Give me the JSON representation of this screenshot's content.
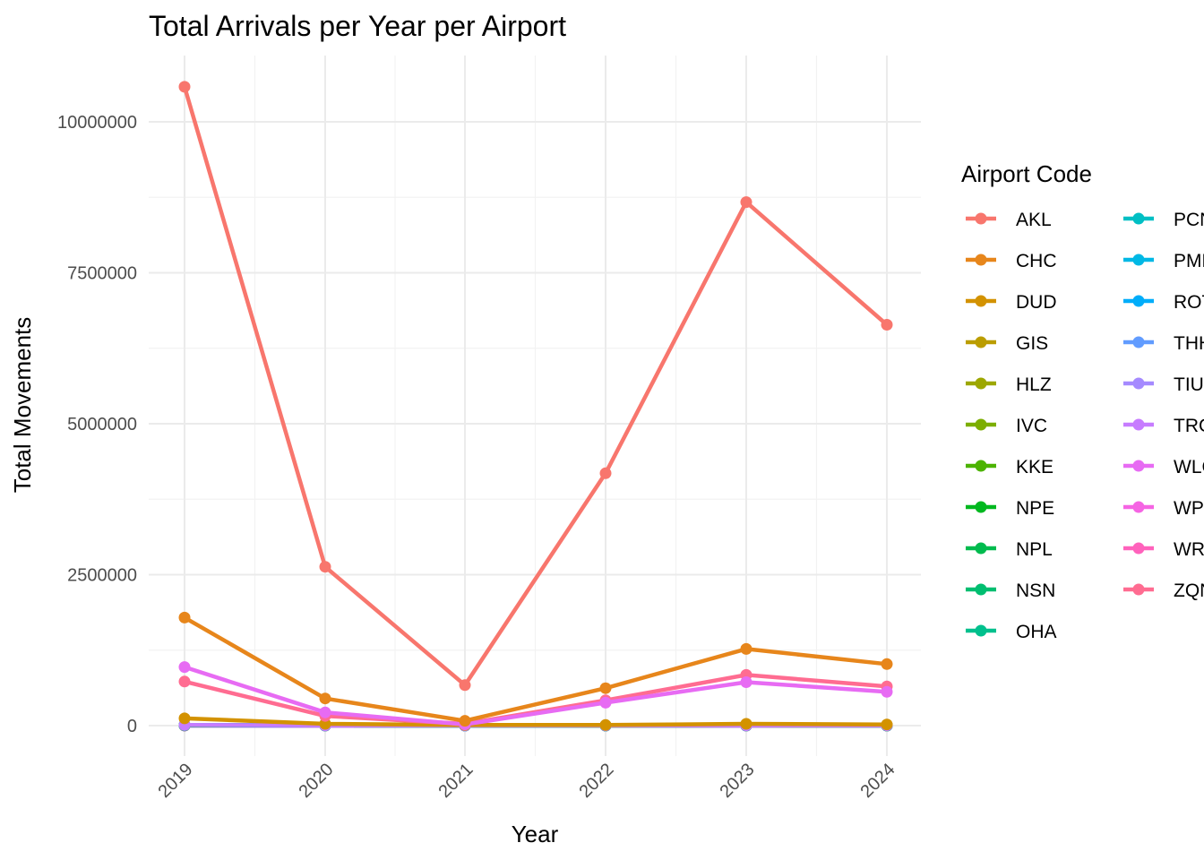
{
  "chart_data": {
    "type": "line",
    "title": "Total Arrivals per Year per Airport",
    "xlabel": "Year",
    "ylabel": "Total Movements",
    "x": [
      "2019",
      "2020",
      "2021",
      "2022",
      "2023",
      "2024"
    ],
    "ylim": [
      -500000,
      11000000
    ],
    "yticks": [
      0,
      2500000,
      5000000,
      7500000,
      10000000
    ],
    "ytick_labels": [
      "0",
      "2500000",
      "5000000",
      "7500000",
      "10000000"
    ],
    "grid": true,
    "legend_title": "Airport Code",
    "legend_position": "right",
    "series": [
      {
        "name": "AKL",
        "color": "#F8766D",
        "values": [
          10580000,
          2630000,
          670000,
          4180000,
          8670000,
          6640000
        ]
      },
      {
        "name": "CHC",
        "color": "#E7861B",
        "values": [
          1790000,
          450000,
          80000,
          620000,
          1270000,
          1020000
        ]
      },
      {
        "name": "DUD",
        "color": "#D39200",
        "values": [
          120000,
          30000,
          10000,
          10000,
          30000,
          20000
        ]
      },
      {
        "name": "GIS",
        "color": "#BB9D00",
        "values": [
          10000,
          5000,
          2000,
          3000,
          5000,
          4000
        ]
      },
      {
        "name": "HLZ",
        "color": "#9DA700",
        "values": [
          10000,
          5000,
          2000,
          3000,
          5000,
          4000
        ]
      },
      {
        "name": "IVC",
        "color": "#7CAE00",
        "values": [
          10000,
          5000,
          2000,
          3000,
          5000,
          4000
        ]
      },
      {
        "name": "KKE",
        "color": "#4BB300",
        "values": [
          5000,
          3000,
          1000,
          2000,
          3000,
          2000
        ]
      },
      {
        "name": "NPE",
        "color": "#00B81F",
        "values": [
          10000,
          5000,
          2000,
          3000,
          5000,
          4000
        ]
      },
      {
        "name": "NPL",
        "color": "#00BB4E",
        "values": [
          5000,
          3000,
          1000,
          2000,
          3000,
          2000
        ]
      },
      {
        "name": "NSN",
        "color": "#00BE70",
        "values": [
          10000,
          5000,
          2000,
          3000,
          5000,
          4000
        ]
      },
      {
        "name": "OHA",
        "color": "#00C08D",
        "values": [
          1000,
          500,
          200,
          300,
          500,
          400
        ]
      },
      {
        "name": "PCN",
        "color": "#00BFC4",
        "values": [
          1000,
          500,
          200,
          300,
          500,
          400
        ]
      },
      {
        "name": "PMR",
        "color": "#00B8E5",
        "values": [
          10000,
          5000,
          2000,
          3000,
          5000,
          4000
        ]
      },
      {
        "name": "ROT",
        "color": "#00ADFA",
        "values": [
          10000,
          5000,
          2000,
          3000,
          5000,
          4000
        ]
      },
      {
        "name": "THH",
        "color": "#619CFF",
        "values": [
          1000,
          500,
          200,
          300,
          500,
          400
        ]
      },
      {
        "name": "TIU",
        "color": "#A58AFF",
        "values": [
          2000,
          1000,
          500,
          800,
          1000,
          800
        ]
      },
      {
        "name": "TRG",
        "color": "#C77CFF",
        "values": [
          10000,
          5000,
          2000,
          3000,
          5000,
          4000
        ]
      },
      {
        "name": "WLG",
        "color": "#E76BF3",
        "values": [
          970000,
          220000,
          20000,
          380000,
          720000,
          560000
        ]
      },
      {
        "name": "WPI",
        "color": "#F564E3",
        "values": [
          1000,
          500,
          200,
          300,
          500,
          400
        ]
      },
      {
        "name": "WRE",
        "color": "#FF62BC",
        "values": [
          2000,
          1000,
          500,
          800,
          1000,
          800
        ]
      },
      {
        "name": "ZQN",
        "color": "#FF6C91",
        "values": [
          730000,
          160000,
          30000,
          420000,
          840000,
          650000
        ]
      }
    ]
  }
}
